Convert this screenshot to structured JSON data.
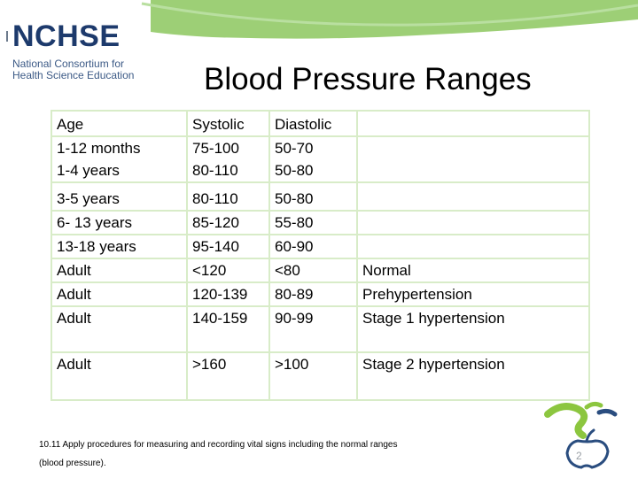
{
  "logo": {
    "mark": "NCHSE",
    "line1": "National Consortium for",
    "line2": "Health Science Education"
  },
  "title": "Blood Pressure Ranges",
  "table": {
    "rows": [
      [
        "Age",
        "Systolic",
        "Diastolic",
        ""
      ],
      [
        "1-12 months",
        "75-100",
        "50-70",
        ""
      ],
      [
        "1-4 years",
        "80-110",
        "50-80",
        ""
      ],
      [
        "3-5 years",
        "80-110",
        "50-80",
        ""
      ],
      [
        "6- 13  years",
        "85-120",
        "55-80",
        ""
      ],
      [
        "13-18 years",
        "95-140",
        "60-90",
        ""
      ],
      [
        "Adult",
        "<120",
        "<80",
        "Normal"
      ],
      [
        "Adult",
        "120-139",
        "80-89",
        "Prehypertension"
      ],
      [
        "Adult",
        "140-159",
        "90-99",
        "Stage 1 hypertension"
      ],
      [
        "Adult",
        ">160",
        ">100",
        "Stage 2 hypertension"
      ]
    ]
  },
  "footnote": {
    "line1": "10.11 Apply procedures for measuring and recording vital signs including the normal ranges",
    "line2": "(blood pressure)."
  },
  "slide_number": "2",
  "colors": {
    "banner_green": "#9dcf76",
    "table_border": "#d8ecc8",
    "logo_blue": "#1d3a6c"
  }
}
